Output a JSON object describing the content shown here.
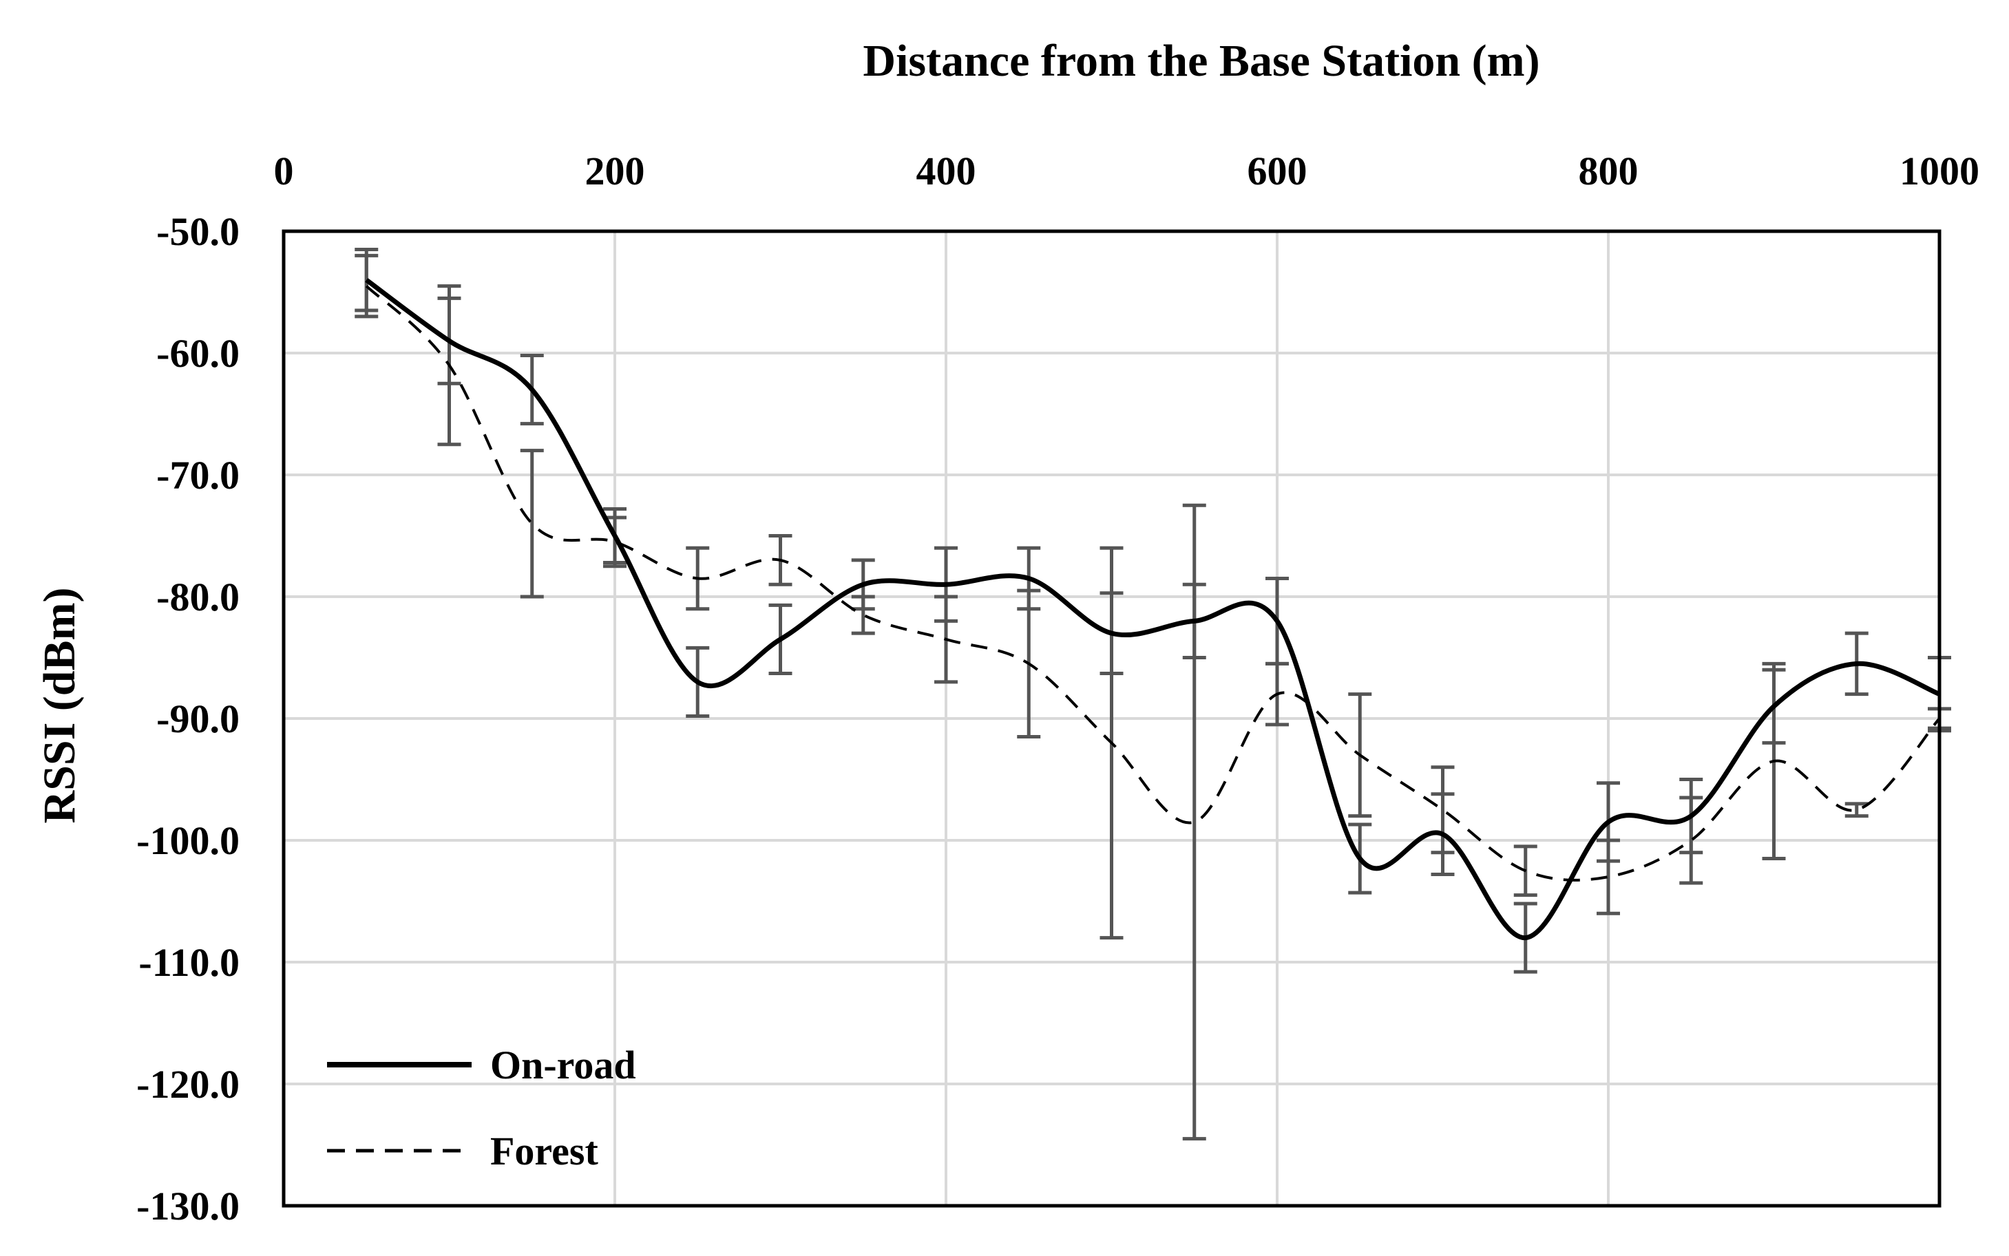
{
  "chart_data": {
    "type": "line",
    "title": "",
    "xlabel": "Distance from the Base Station (m)",
    "ylabel": "RSSI (dBm)",
    "xlim": [
      0,
      1000
    ],
    "ylim": [
      -130,
      -50
    ],
    "x_ticks": [
      "0",
      "200",
      "400",
      "600",
      "800",
      "1000"
    ],
    "x_tick_values": [
      0,
      200,
      400,
      600,
      800,
      1000
    ],
    "y_ticks": [
      "-50.0",
      "-60.0",
      "-70.0",
      "-80.0",
      "-90.0",
      "-100.0",
      "-110.0",
      "-120.0",
      "-130.0"
    ],
    "y_tick_values": [
      -50,
      -60,
      -70,
      -80,
      -90,
      -100,
      -110,
      -120,
      -130
    ],
    "x_axis_position": "top",
    "grid": true,
    "legend_position": "bottom-left",
    "x": [
      50,
      100,
      150,
      200,
      250,
      300,
      350,
      400,
      450,
      500,
      550,
      600,
      650,
      700,
      750,
      800,
      850,
      900,
      950,
      1000
    ],
    "series": [
      {
        "name": "On-road",
        "style": "solid",
        "color": "#000000",
        "values": [
          -54,
          -59,
          -63,
          -75,
          -87,
          -83.5,
          -79,
          -79,
          -78.5,
          -83,
          -82,
          -82,
          -101.5,
          -99.5,
          -108,
          -98.5,
          -98,
          -89,
          -85.5,
          -88
        ],
        "error": [
          2.5,
          3.5,
          2.8,
          2.2,
          2.8,
          2.8,
          2.0,
          3.0,
          2.5,
          3.3,
          3.0,
          3.5,
          2.8,
          3.3,
          2.8,
          3.2,
          3.0,
          3.0,
          2.5,
          3.0
        ]
      },
      {
        "name": "Forest",
        "style": "dashed",
        "color": "#000000",
        "values": [
          -54.5,
          -61,
          -74,
          -75.5,
          -78.5,
          -77,
          -81.5,
          -83.5,
          -85.5,
          -92,
          -98.5,
          -88,
          -93,
          -97.5,
          -102.5,
          -103,
          -100,
          -93.5,
          -97.5,
          -90
        ],
        "error": [
          2.5,
          6.5,
          6.0,
          2.0,
          2.5,
          2.0,
          1.5,
          3.5,
          6.0,
          16.0,
          26.0,
          2.5,
          5.0,
          3.5,
          2.0,
          3.0,
          3.5,
          8.0,
          0.5,
          0.8
        ]
      }
    ]
  },
  "colors": {
    "line": "#000000",
    "error_bar": "#555555",
    "grid": "#d9d9d9",
    "frame": "#000000"
  }
}
